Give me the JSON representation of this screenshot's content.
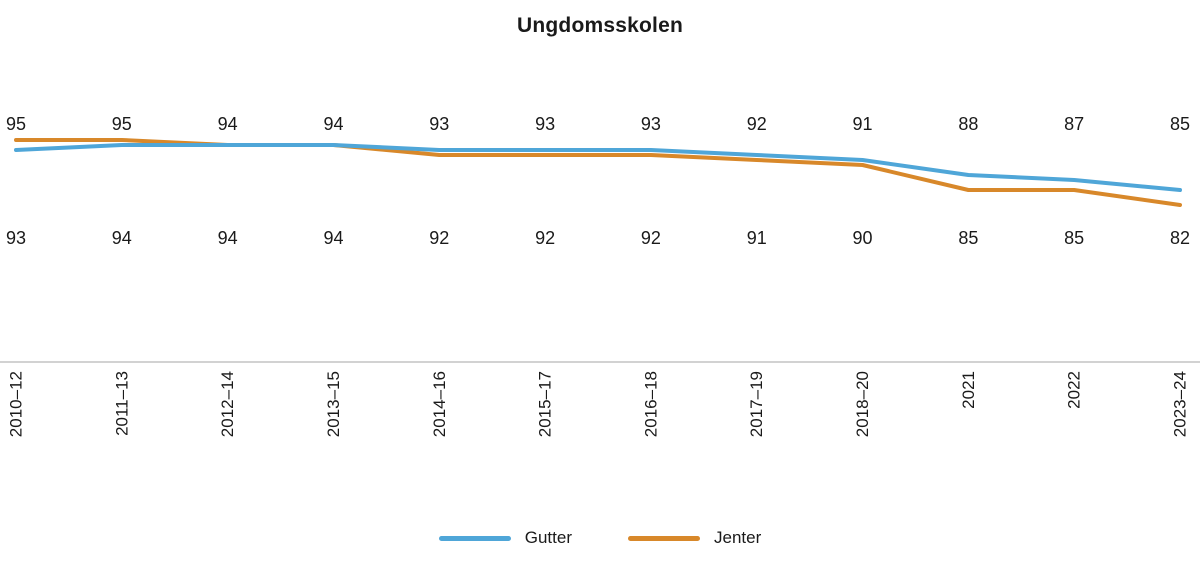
{
  "chart_data": {
    "type": "line",
    "title": "Ungdomsskolen",
    "categories": [
      "2010–12",
      "2011–13",
      "2012–14",
      "2013–15",
      "2014–16",
      "2015–17",
      "2016–18",
      "2017–19",
      "2018–20",
      "2021",
      "2022",
      "2023–24"
    ],
    "series": [
      {
        "name": "Gutter",
        "color": "#4FA6D8",
        "values": [
          93,
          94,
          94,
          94,
          93,
          93,
          93,
          92,
          91,
          88,
          87,
          85
        ]
      },
      {
        "name": "Jenter",
        "color": "#D8882A",
        "values": [
          95,
          95,
          94,
          94,
          92,
          92,
          92,
          91,
          90,
          85,
          85,
          82
        ]
      }
    ],
    "value_labels_top": [
      95,
      95,
      94,
      94,
      93,
      93,
      93,
      92,
      91,
      88,
      87,
      85
    ],
    "value_labels_bottom": [
      93,
      94,
      94,
      94,
      92,
      92,
      92,
      91,
      90,
      85,
      85,
      82
    ],
    "ylim": [
      80,
      97
    ],
    "grid": false,
    "legend_position": "bottom",
    "axis_line_color": "#a6a6a6",
    "text_color": "#1a1a1a"
  }
}
